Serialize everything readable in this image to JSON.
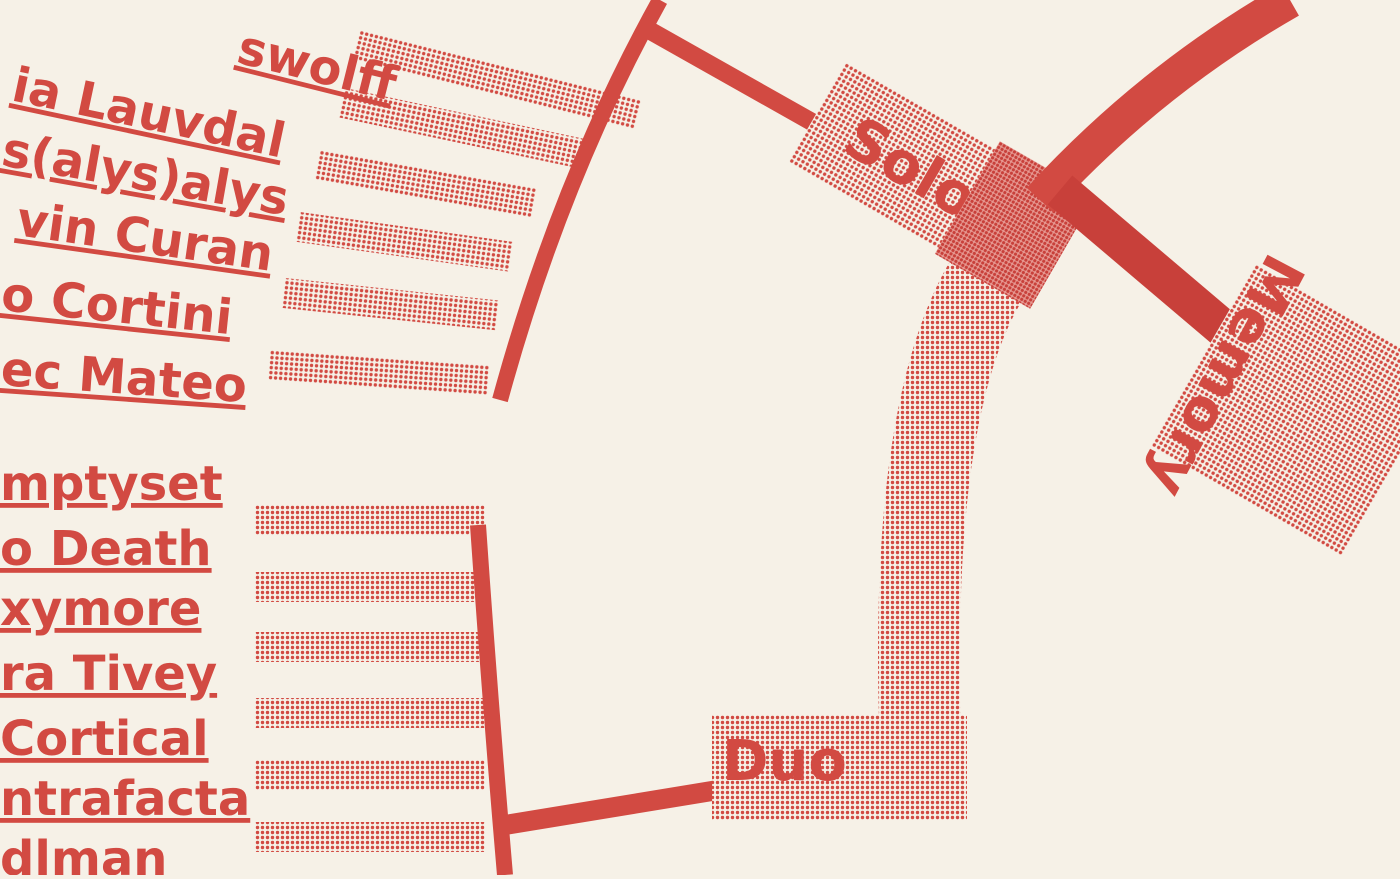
{
  "colors": {
    "paper": "#f6f1e7",
    "ink": "#d24a42",
    "halftone": "#dc7670"
  },
  "labels": {
    "memory": "Memory",
    "solo": "Solo",
    "duo": "Duo"
  },
  "upper_names": [
    {
      "text": "swolff"
    },
    {
      "text": "ia Lauvdal"
    },
    {
      "text": "s(alys)alys"
    },
    {
      "text": "vin Curan"
    },
    {
      "text": "o Cortini"
    },
    {
      "text": "ec Mateo"
    }
  ],
  "lower_names": [
    {
      "text": "mptyset"
    },
    {
      "text": "o Death"
    },
    {
      "text": "xymore"
    },
    {
      "text": "ra Tivey"
    },
    {
      "text": "Cortical"
    },
    {
      "text": "ntrafacta"
    },
    {
      "text": "dlman"
    }
  ]
}
